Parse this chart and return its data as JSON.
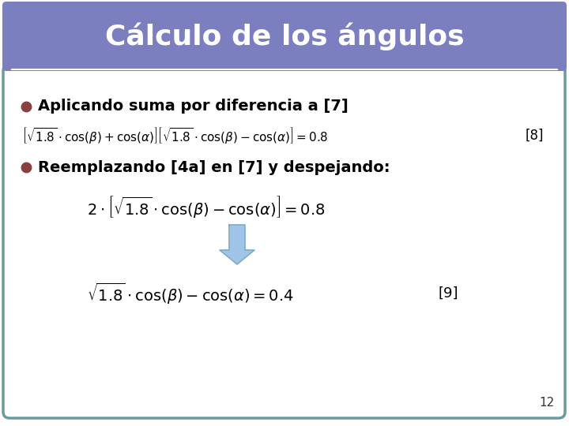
{
  "title": "Cálculo de los ángulos",
  "title_bg_color": "#7B7FBF",
  "title_text_color": "#FFFFFF",
  "slide_bg_color": "#FFFFFF",
  "border_color": "#6B9B9B",
  "bullet_color": "#8B4040",
  "bullet1_text": "Aplicando suma por diferencia a [7]",
  "bullet2_text": "Reemplazando [4a] en [7] y despejando:",
  "eq1_ref": "[8]",
  "eq3_ref": "[9]",
  "page_num": "12",
  "arrow_color": "#A0C4E8",
  "arrow_edge_color": "#7AAABB"
}
